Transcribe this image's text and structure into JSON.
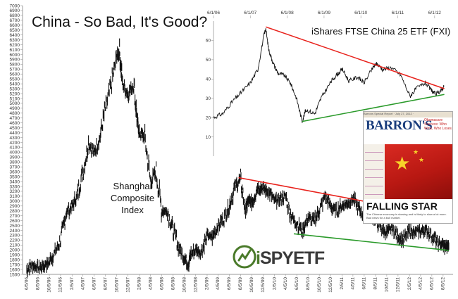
{
  "title": "China - So Bad, It's Good?",
  "logo": {
    "prefix": "i",
    "text": "SPYETF"
  },
  "chart_data": [
    {
      "type": "line",
      "series_name": "Shanghai Composite Index",
      "series_label_lines": [
        "Shanghai",
        "Composite",
        "Index"
      ],
      "ylim": [
        1500,
        7000
      ],
      "yticks": [
        1500,
        1600,
        1700,
        1800,
        1900,
        2000,
        2100,
        2200,
        2300,
        2400,
        2500,
        2600,
        2700,
        2800,
        2900,
        3000,
        3100,
        3200,
        3300,
        3400,
        3500,
        3600,
        3700,
        3800,
        3900,
        4000,
        4100,
        4200,
        4300,
        4400,
        4500,
        4600,
        4700,
        4800,
        4900,
        5000,
        5100,
        5200,
        5300,
        5400,
        5500,
        5600,
        5700,
        5800,
        5900,
        6000,
        6100,
        6200,
        6300,
        6400,
        6500,
        6600,
        6700,
        6800,
        6900,
        7000
      ],
      "xtick_labels": [
        "6/5/06",
        "8/5/06",
        "10/5/06",
        "12/5/06",
        "2/5/07",
        "4/5/07",
        "6/5/07",
        "8/5/07",
        "10/5/07",
        "12/5/07",
        "2/5/08",
        "4/5/08",
        "6/5/08",
        "8/5/08",
        "10/5/08",
        "12/5/08",
        "2/5/09",
        "4/5/09",
        "6/5/09",
        "8/5/09",
        "10/5/09",
        "12/5/09",
        "2/5/10",
        "4/5/10",
        "6/5/10",
        "8/5/10",
        "10/5/10",
        "12/5/10",
        "2/5/11",
        "4/5/11",
        "6/5/11",
        "8/5/11",
        "10/5/11",
        "12/5/11",
        "2/5/12",
        "4/5/12",
        "6/5/12",
        "8/5/12"
      ],
      "points": [
        [
          "6/5/06",
          1600
        ],
        [
          "7/5/06",
          1700
        ],
        [
          "8/5/06",
          1620
        ],
        [
          "9/5/06",
          1680
        ],
        [
          "10/5/06",
          1750
        ],
        [
          "11/5/06",
          1950
        ],
        [
          "12/5/06",
          2200
        ],
        [
          "1/5/07",
          2750
        ],
        [
          "2/5/07",
          2900
        ],
        [
          "3/5/07",
          3100
        ],
        [
          "4/5/07",
          3600
        ],
        [
          "5/5/07",
          4200
        ],
        [
          "6/5/07",
          4000
        ],
        [
          "7/5/07",
          4300
        ],
        [
          "8/5/07",
          4900
        ],
        [
          "9/5/07",
          5400
        ],
        [
          "10/5/07",
          5950
        ],
        [
          "10/20/07",
          6050
        ],
        [
          "11/5/07",
          5400
        ],
        [
          "12/5/07",
          5200
        ],
        [
          "1/5/08",
          5400
        ],
        [
          "1/25/08",
          4600
        ],
        [
          "2/5/08",
          4400
        ],
        [
          "3/5/08",
          4300
        ],
        [
          "4/5/08",
          3400
        ],
        [
          "5/5/08",
          3600
        ],
        [
          "6/5/08",
          2800
        ],
        [
          "7/5/08",
          2800
        ],
        [
          "8/5/08",
          2400
        ],
        [
          "9/5/08",
          2050
        ],
        [
          "10/5/08",
          1850
        ],
        [
          "10/28/08",
          1700
        ],
        [
          "11/5/08",
          1900
        ],
        [
          "12/5/08",
          2000
        ],
        [
          "1/5/09",
          1950
        ],
        [
          "2/5/09",
          2300
        ],
        [
          "3/5/09",
          2250
        ],
        [
          "4/5/09",
          2500
        ],
        [
          "5/5/09",
          2650
        ],
        [
          "6/5/09",
          2900
        ],
        [
          "7/5/09",
          3300
        ],
        [
          "8/5/09",
          3450
        ],
        [
          "8/31/09",
          2800
        ],
        [
          "9/15/09",
          3000
        ],
        [
          "10/5/09",
          2950
        ],
        [
          "11/5/09",
          3300
        ],
        [
          "12/5/09",
          3250
        ],
        [
          "1/5/10",
          3200
        ],
        [
          "2/5/10",
          3000
        ],
        [
          "3/5/10",
          3050
        ],
        [
          "4/5/10",
          3100
        ],
        [
          "5/5/10",
          2700
        ],
        [
          "6/5/10",
          2550
        ],
        [
          "7/5/10",
          2400
        ],
        [
          "8/5/10",
          2650
        ],
        [
          "9/5/10",
          2600
        ],
        [
          "10/5/10",
          2800
        ],
        [
          "11/5/10",
          3100
        ],
        [
          "12/5/10",
          2900
        ],
        [
          "1/5/11",
          2800
        ],
        [
          "2/5/11",
          2900
        ],
        [
          "3/5/11",
          2950
        ],
        [
          "4/5/11",
          3050
        ],
        [
          "5/5/11",
          2850
        ],
        [
          "6/5/11",
          2700
        ],
        [
          "7/5/11",
          2800
        ],
        [
          "8/5/11",
          2600
        ],
        [
          "9/5/11",
          2450
        ],
        [
          "10/5/11",
          2350
        ],
        [
          "11/5/11",
          2450
        ],
        [
          "12/5/11",
          2250
        ],
        [
          "1/5/12",
          2200
        ],
        [
          "2/5/12",
          2400
        ],
        [
          "3/5/12",
          2350
        ],
        [
          "4/5/12",
          2400
        ],
        [
          "5/5/12",
          2400
        ],
        [
          "6/5/12",
          2300
        ],
        [
          "7/5/12",
          2150
        ],
        [
          "8/5/12",
          2100
        ],
        [
          "8/25/12",
          2050
        ],
        [
          "9/5/12",
          2100
        ]
      ],
      "trendlines": [
        {
          "color": "#e8221c",
          "from": [
            "7/25/09",
            3480
          ],
          "to": [
            "9/5/12",
            2670
          ]
        },
        {
          "color": "#2a9a2a",
          "from": [
            "5/20/10",
            2330
          ],
          "to": [
            "9/5/12",
            1990
          ]
        }
      ]
    },
    {
      "type": "line",
      "title": "iShares FTSE China 25 ETF (FXI)",
      "ylim": [
        0,
        70
      ],
      "yticks": [
        10,
        20,
        30,
        40,
        50,
        60
      ],
      "xtick_labels": [
        "6/1/06",
        "6/1/07",
        "6/1/08",
        "6/1/09",
        "6/1/10",
        "6/1/11",
        "6/1/12"
      ],
      "points": [
        [
          "6/1/06",
          20
        ],
        [
          "9/1/06",
          22
        ],
        [
          "12/1/06",
          28
        ],
        [
          "3/1/07",
          33
        ],
        [
          "6/1/07",
          38
        ],
        [
          "8/15/07",
          45
        ],
        [
          "10/15/07",
          63
        ],
        [
          "11/1/07",
          66
        ],
        [
          "12/1/07",
          55
        ],
        [
          "1/15/08",
          48
        ],
        [
          "3/1/08",
          43
        ],
        [
          "5/1/08",
          42
        ],
        [
          "7/1/08",
          38
        ],
        [
          "9/1/08",
          30
        ],
        [
          "10/27/08",
          18
        ],
        [
          "12/1/08",
          24
        ],
        [
          "3/1/09",
          22
        ],
        [
          "5/1/09",
          30
        ],
        [
          "8/1/09",
          38
        ],
        [
          "10/1/09",
          42
        ],
        [
          "12/1/09",
          45
        ],
        [
          "2/1/10",
          39
        ],
        [
          "5/1/10",
          41
        ],
        [
          "7/1/10",
          38
        ],
        [
          "10/1/10",
          46
        ],
        [
          "11/5/10",
          48
        ],
        [
          "1/1/11",
          45
        ],
        [
          "4/1/11",
          46
        ],
        [
          "7/1/11",
          42
        ],
        [
          "10/1/11",
          31
        ],
        [
          "12/1/11",
          35
        ],
        [
          "3/1/12",
          38
        ],
        [
          "5/1/12",
          34
        ],
        [
          "6/15/12",
          32
        ],
        [
          "8/1/12",
          34
        ],
        [
          "9/1/12",
          36
        ]
      ],
      "trendlines": [
        {
          "color": "#e8221c",
          "from": [
            "11/1/07",
            67
          ],
          "to": [
            "9/5/12",
            35
          ]
        },
        {
          "color": "#2a9a2a",
          "from": [
            "10/27/08",
            18
          ],
          "to": [
            "9/5/12",
            32
          ]
        }
      ]
    }
  ],
  "cover": {
    "header": "Barrons Special Report · July 27, 2012 ·",
    "brand": "BARRON'S",
    "side_text": "Obamacare Success: Who Wins, Who Loses",
    "headline": "FALLING STAR",
    "sub": "The Chinese economy is slowing and is likely to slow a lot more. Bad news for a bull market."
  }
}
